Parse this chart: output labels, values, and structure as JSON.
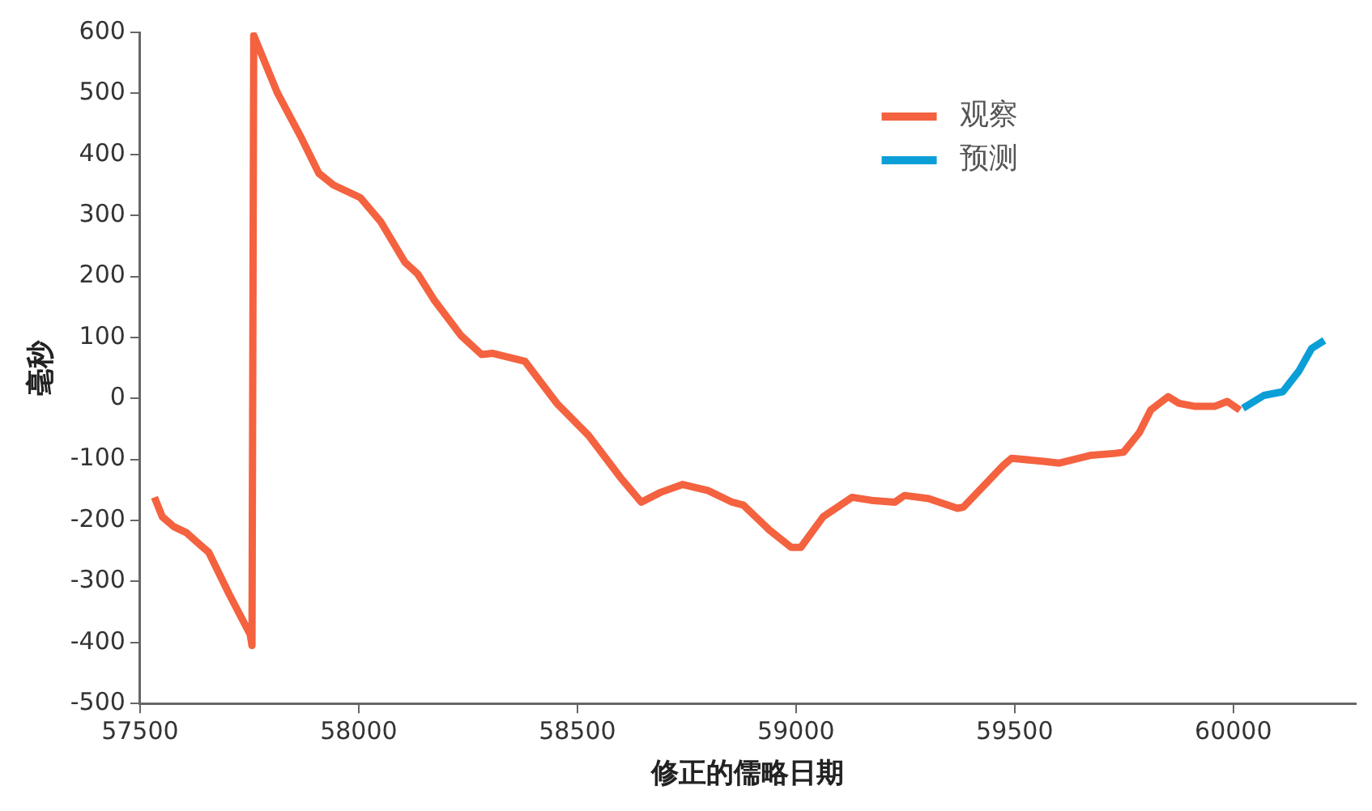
{
  "chart_data": {
    "type": "line",
    "xlabel": "修正的儒略日期",
    "ylabel": "毫秒",
    "xlim": [
      57500,
      60280
    ],
    "ylim": [
      -500,
      600
    ],
    "xticks": [
      57500,
      58000,
      58500,
      59000,
      59500,
      60000
    ],
    "yticks": [
      -500,
      -400,
      -300,
      -200,
      -100,
      0,
      100,
      200,
      300,
      400,
      500,
      600
    ],
    "grid": false,
    "legend": "top right",
    "marker": "none",
    "line_style": "solid",
    "series": [
      {
        "name": "观察",
        "color": "#f4623f",
        "x": [
          57533,
          57551,
          57577,
          57606,
          57631,
          57657,
          57704,
          57752,
          57756,
          57760,
          57814,
          57869,
          57909,
          57942,
          58004,
          58051,
          58106,
          58135,
          58172,
          58234,
          58281,
          58307,
          58380,
          58453,
          58526,
          58599,
          58646,
          58690,
          58741,
          58799,
          58854,
          58880,
          58938,
          58989,
          59011,
          59062,
          59128,
          59172,
          59226,
          59248,
          59303,
          59369,
          59383,
          59475,
          59493,
          59566,
          59602,
          59675,
          59730,
          59749,
          59785,
          59811,
          59851,
          59876,
          59913,
          59957,
          59986,
          60015
        ],
        "values": [
          -162,
          -194,
          -210,
          -220,
          -236,
          -252,
          -321,
          -387,
          -405,
          595,
          501,
          427,
          369,
          350,
          329,
          289,
          223,
          204,
          162,
          103,
          72,
          74,
          61,
          -8,
          -61,
          -130,
          -170,
          -154,
          -141,
          -151,
          -170,
          -175,
          -215,
          -244,
          -244,
          -194,
          -162,
          -167,
          -170,
          -159,
          -164,
          -180,
          -178,
          -109,
          -98,
          -103,
          -106,
          -93,
          -90,
          -88,
          -56,
          -19,
          3,
          -8,
          -13,
          -13,
          -5,
          -19
        ]
      },
      {
        "name": "预测",
        "color": "#0b9fd8",
        "x": [
          60022,
          60070,
          60113,
          60150,
          60179,
          60208
        ],
        "values": [
          -16,
          5,
          11,
          45,
          82,
          95
        ]
      }
    ]
  }
}
